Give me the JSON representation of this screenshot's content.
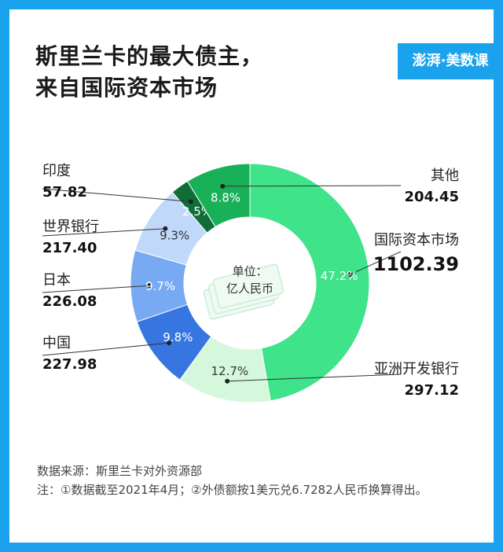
{
  "header": {
    "title_line1": "斯里兰卡的最大债主，",
    "title_line2": "来自国际资本市场",
    "brand": "澎湃·美数课"
  },
  "chart_data": {
    "type": "pie",
    "unit_label_line1": "单位：",
    "unit_label_line2": "亿人民币",
    "slices": [
      {
        "name": "国际资本市场",
        "value": 1102.39,
        "value_label": "1102.39",
        "percent": 47.2,
        "percent_label": "47.2%",
        "color": "#3ee38a"
      },
      {
        "name": "亚洲开发银行",
        "value": 297.12,
        "value_label": "297.12",
        "percent": 12.7,
        "percent_label": "12.7%",
        "color": "#d5f8dd"
      },
      {
        "name": "中国",
        "value": 227.98,
        "value_label": "227.98",
        "percent": 9.8,
        "percent_label": "9.8%",
        "color": "#3776e0"
      },
      {
        "name": "日本",
        "value": 226.08,
        "value_label": "226.08",
        "percent": 9.7,
        "percent_label": "9.7%",
        "color": "#77aaf3"
      },
      {
        "name": "世界银行",
        "value": 217.4,
        "value_label": "217.40",
        "percent": 9.3,
        "percent_label": "9.3%",
        "color": "#c0d9fb"
      },
      {
        "name": "印度",
        "value": 57.82,
        "value_label": "57.82",
        "percent": 2.5,
        "percent_label": "2.5%",
        "color": "#0f6d38"
      },
      {
        "name": "其他",
        "value": 204.45,
        "value_label": "204.45",
        "percent": 8.8,
        "percent_label": "8.8%",
        "color": "#19b158"
      }
    ]
  },
  "footer": {
    "source": "数据来源：斯里兰卡对外资源部",
    "note": "注：①数据截至2021年4月；②外债额按1美元兑6.7282人民币换算得出。"
  }
}
